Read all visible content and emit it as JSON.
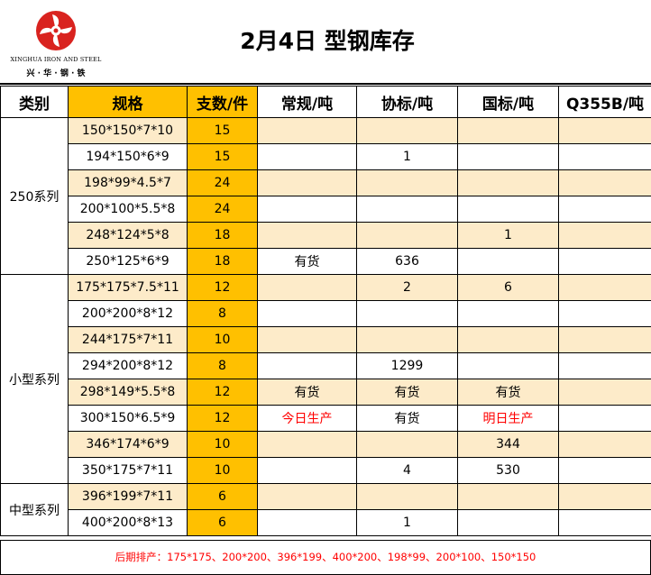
{
  "header": {
    "company_en": "XINGHUA IRON AND STEEL",
    "company_cn": "兴 · 华 · 钢 · 铁",
    "title": "2月4日  型钢库存"
  },
  "colors": {
    "accent": "#ffc000",
    "row_tint": "#fdebc9",
    "highlight_text": "#ff0000"
  },
  "columns": [
    "类别",
    "规格",
    "支数/件",
    "常规/吨",
    "协标/吨",
    "国标/吨",
    "Q355B/吨"
  ],
  "groups": [
    {
      "category": "250系列",
      "rows": [
        {
          "spec": "150*150*7*10",
          "qty": "15",
          "regular": "",
          "assoc": "",
          "national": "",
          "q355b": ""
        },
        {
          "spec": "194*150*6*9",
          "qty": "15",
          "regular": "",
          "assoc": "1",
          "national": "",
          "q355b": ""
        },
        {
          "spec": "198*99*4.5*7",
          "qty": "24",
          "regular": "",
          "assoc": "",
          "national": "",
          "q355b": ""
        },
        {
          "spec": "200*100*5.5*8",
          "qty": "24",
          "regular": "",
          "assoc": "",
          "national": "",
          "q355b": ""
        },
        {
          "spec": "248*124*5*8",
          "qty": "18",
          "regular": "",
          "assoc": "",
          "national": "1",
          "q355b": ""
        },
        {
          "spec": "250*125*6*9",
          "qty": "18",
          "regular": "有货",
          "assoc": "636",
          "national": "",
          "q355b": ""
        }
      ]
    },
    {
      "category": "小型系列",
      "rows": [
        {
          "spec": "175*175*7.5*11",
          "qty": "12",
          "regular": "",
          "assoc": "2",
          "national": "6",
          "q355b": ""
        },
        {
          "spec": "200*200*8*12",
          "qty": "8",
          "regular": "",
          "assoc": "",
          "national": "",
          "q355b": ""
        },
        {
          "spec": "244*175*7*11",
          "qty": "10",
          "regular": "",
          "assoc": "",
          "national": "",
          "q355b": ""
        },
        {
          "spec": "294*200*8*12",
          "qty": "8",
          "regular": "",
          "assoc": "1299",
          "national": "",
          "q355b": ""
        },
        {
          "spec": "298*149*5.5*8",
          "qty": "12",
          "regular": "有货",
          "assoc": "有货",
          "national": "有货",
          "q355b": ""
        },
        {
          "spec": "300*150*6.5*9",
          "qty": "12",
          "regular": "今日生产",
          "assoc": "有货",
          "national": "明日生产",
          "q355b": ""
        },
        {
          "spec": "346*174*6*9",
          "qty": "10",
          "regular": "",
          "assoc": "",
          "national": "344",
          "q355b": ""
        },
        {
          "spec": "350*175*7*11",
          "qty": "10",
          "regular": "",
          "assoc": "4",
          "national": "530",
          "q355b": ""
        }
      ]
    },
    {
      "category": "中型系列",
      "rows": [
        {
          "spec": "396*199*7*11",
          "qty": "6",
          "regular": "",
          "assoc": "",
          "national": "",
          "q355b": ""
        },
        {
          "spec": "400*200*8*13",
          "qty": "6",
          "regular": "",
          "assoc": "1",
          "national": "",
          "q355b": ""
        }
      ]
    }
  ],
  "red_values": [
    "今日生产",
    "明日生产"
  ],
  "footer": "后期排产：175*175、200*200、396*199、400*200、198*99、200*100、150*150"
}
